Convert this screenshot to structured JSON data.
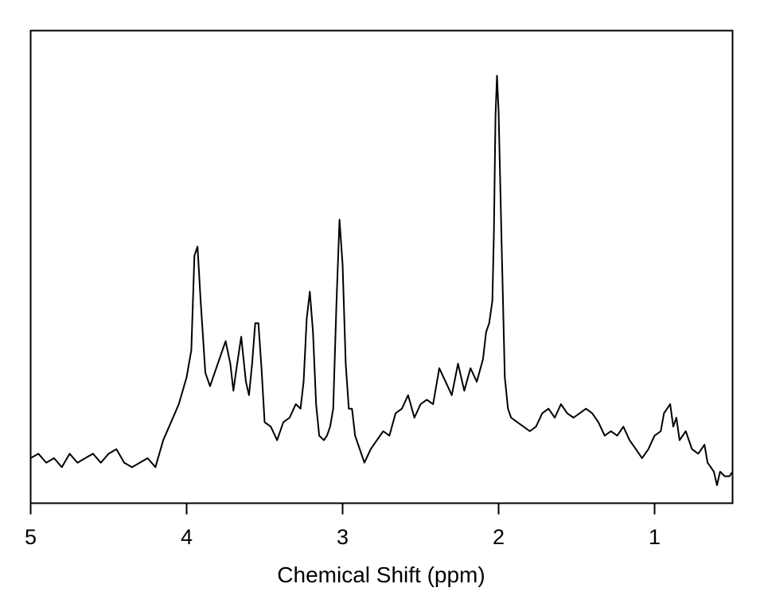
{
  "chart_data": {
    "type": "line",
    "title": "",
    "xlabel": "Chemical Shift (ppm)",
    "ylabel": "",
    "x_reversed": true,
    "xlim": [
      5.0,
      0.5
    ],
    "ylim": [
      0.0,
      1.05
    ],
    "xticks": [
      "5",
      "4",
      "3",
      "2",
      "1"
    ],
    "grid": false,
    "legend": "none",
    "line_color": "#000000",
    "series": [
      {
        "x": [
          5.0,
          4.95,
          4.9,
          4.85,
          4.8,
          4.75,
          4.7,
          4.65,
          4.6,
          4.55,
          4.5,
          4.45,
          4.4,
          4.35,
          4.3,
          4.25,
          4.2,
          4.15,
          4.1,
          4.05,
          4.0,
          3.97,
          3.95,
          3.93,
          3.91,
          3.88,
          3.85,
          3.82,
          3.78,
          3.75,
          3.72,
          3.7,
          3.68,
          3.65,
          3.62,
          3.6,
          3.58,
          3.56,
          3.54,
          3.52,
          3.5,
          3.46,
          3.42,
          3.38,
          3.34,
          3.3,
          3.27,
          3.25,
          3.23,
          3.21,
          3.19,
          3.17,
          3.15,
          3.12,
          3.1,
          3.08,
          3.06,
          3.04,
          3.02,
          3.0,
          2.98,
          2.96,
          2.94,
          2.92,
          2.9,
          2.86,
          2.82,
          2.78,
          2.74,
          2.7,
          2.66,
          2.62,
          2.58,
          2.54,
          2.5,
          2.46,
          2.42,
          2.38,
          2.34,
          2.3,
          2.26,
          2.22,
          2.18,
          2.14,
          2.1,
          2.08,
          2.06,
          2.04,
          2.03,
          2.02,
          2.01,
          2.0,
          1.98,
          1.96,
          1.94,
          1.92,
          1.88,
          1.84,
          1.8,
          1.76,
          1.72,
          1.68,
          1.64,
          1.6,
          1.56,
          1.52,
          1.48,
          1.44,
          1.4,
          1.36,
          1.32,
          1.28,
          1.24,
          1.2,
          1.16,
          1.12,
          1.08,
          1.04,
          1.0,
          0.96,
          0.94,
          0.92,
          0.9,
          0.88,
          0.86,
          0.84,
          0.8,
          0.76,
          0.72,
          0.68,
          0.66,
          0.64,
          0.62,
          0.6,
          0.58,
          0.55,
          0.52,
          0.5
        ],
        "y": [
          0.1,
          0.11,
          0.09,
          0.1,
          0.08,
          0.11,
          0.09,
          0.1,
          0.11,
          0.09,
          0.11,
          0.12,
          0.09,
          0.08,
          0.09,
          0.1,
          0.08,
          0.14,
          0.18,
          0.22,
          0.28,
          0.34,
          0.55,
          0.57,
          0.45,
          0.29,
          0.26,
          0.29,
          0.33,
          0.36,
          0.31,
          0.25,
          0.3,
          0.37,
          0.27,
          0.24,
          0.31,
          0.4,
          0.4,
          0.3,
          0.18,
          0.17,
          0.14,
          0.18,
          0.19,
          0.22,
          0.21,
          0.27,
          0.41,
          0.47,
          0.38,
          0.22,
          0.15,
          0.14,
          0.15,
          0.17,
          0.21,
          0.44,
          0.63,
          0.53,
          0.31,
          0.21,
          0.21,
          0.15,
          0.13,
          0.09,
          0.12,
          0.14,
          0.16,
          0.15,
          0.2,
          0.21,
          0.24,
          0.19,
          0.22,
          0.23,
          0.22,
          0.3,
          0.27,
          0.24,
          0.31,
          0.25,
          0.3,
          0.27,
          0.32,
          0.38,
          0.4,
          0.45,
          0.6,
          0.86,
          0.95,
          0.87,
          0.57,
          0.28,
          0.21,
          0.19,
          0.18,
          0.17,
          0.16,
          0.17,
          0.2,
          0.21,
          0.19,
          0.22,
          0.2,
          0.19,
          0.2,
          0.21,
          0.2,
          0.18,
          0.15,
          0.16,
          0.15,
          0.17,
          0.14,
          0.12,
          0.1,
          0.12,
          0.15,
          0.16,
          0.2,
          0.21,
          0.22,
          0.17,
          0.19,
          0.14,
          0.16,
          0.12,
          0.11,
          0.13,
          0.09,
          0.08,
          0.07,
          0.04,
          0.07,
          0.06,
          0.06,
          0.07
        ]
      }
    ]
  }
}
